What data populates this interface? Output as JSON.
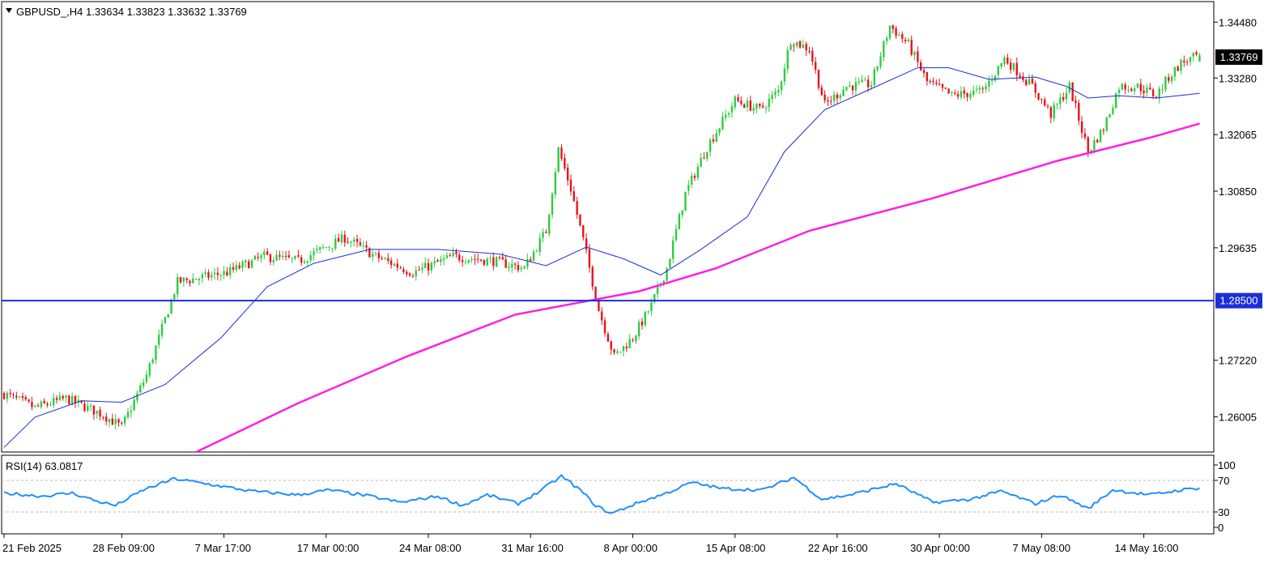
{
  "header": {
    "symbol": "GBPUSD_,H4",
    "open": "1.33634",
    "high": "1.33823",
    "low": "1.33632",
    "close": "1.33769",
    "text": "GBPUSD_,H4  1.33634 1.33823 1.33632 1.33769"
  },
  "rsi_panel": {
    "label": "RSI(14) 63.0817",
    "levels": [
      "100",
      "70",
      "30",
      "0"
    ]
  },
  "price_badges": {
    "current": "1.33769",
    "hline": "1.28500"
  },
  "colors": {
    "bull": "#2ecc40",
    "bear": "#e8131b",
    "ma_fast": "#1a2fd8",
    "ma_slow": "#ff1fe0",
    "hline": "#1a2fd8",
    "rsi": "#1e90ff",
    "current_badge_bg": "#000000",
    "hline_badge_bg": "#1a2fd8"
  },
  "chart_data": {
    "type": "candlestick",
    "symbol": "GBPUSD_",
    "timeframe": "H4",
    "y_ticks": [
      "1.34480",
      "1.33280",
      "1.32065",
      "1.30850",
      "1.29635",
      "1.28500",
      "1.27220",
      "1.26005"
    ],
    "ylim": [
      1.2525,
      1.3492
    ],
    "x_tick_labels": [
      "21 Feb 2025",
      "28 Feb 09:00",
      "7 Mar 17:00",
      "17 Mar 00:00",
      "24 Mar 08:00",
      "31 Mar 16:00",
      "8 Apr 00:00",
      "15 Apr 08:00",
      "22 Apr 16:00",
      "30 Apr 00:00",
      "7 May 08:00",
      "14 May 16:00"
    ],
    "close_path": [
      {
        "bar": 0,
        "close": 1.265
      },
      {
        "bar": 10,
        "close": 1.262
      },
      {
        "bar": 20,
        "close": 1.264
      },
      {
        "bar": 32,
        "close": 1.2605
      },
      {
        "bar": 38,
        "close": 1.2578
      },
      {
        "bar": 46,
        "close": 1.269
      },
      {
        "bar": 56,
        "close": 1.289
      },
      {
        "bar": 72,
        "close": 1.291
      },
      {
        "bar": 84,
        "close": 1.2945
      },
      {
        "bar": 95,
        "close": 1.2935
      },
      {
        "bar": 110,
        "close": 1.2985
      },
      {
        "bar": 120,
        "close": 1.2945
      },
      {
        "bar": 132,
        "close": 1.291
      },
      {
        "bar": 145,
        "close": 1.2945
      },
      {
        "bar": 158,
        "close": 1.2935
      },
      {
        "bar": 168,
        "close": 1.292
      },
      {
        "bar": 175,
        "close": 1.3
      },
      {
        "bar": 179,
        "close": 1.3175
      },
      {
        "bar": 183,
        "close": 1.309
      },
      {
        "bar": 187,
        "close": 1.298
      },
      {
        "bar": 192,
        "close": 1.283
      },
      {
        "bar": 197,
        "close": 1.273
      },
      {
        "bar": 203,
        "close": 1.277
      },
      {
        "bar": 209,
        "close": 1.284
      },
      {
        "bar": 214,
        "close": 1.292
      },
      {
        "bar": 220,
        "close": 1.308
      },
      {
        "bar": 227,
        "close": 1.318
      },
      {
        "bar": 236,
        "close": 1.328
      },
      {
        "bar": 244,
        "close": 1.326
      },
      {
        "bar": 250,
        "close": 1.33
      },
      {
        "bar": 254,
        "close": 1.341
      },
      {
        "bar": 260,
        "close": 1.339
      },
      {
        "bar": 265,
        "close": 1.327
      },
      {
        "bar": 272,
        "close": 1.331
      },
      {
        "bar": 280,
        "close": 1.3315
      },
      {
        "bar": 286,
        "close": 1.344
      },
      {
        "bar": 292,
        "close": 1.34
      },
      {
        "bar": 298,
        "close": 1.332
      },
      {
        "bar": 306,
        "close": 1.329
      },
      {
        "bar": 316,
        "close": 1.33
      },
      {
        "bar": 323,
        "close": 1.337
      },
      {
        "bar": 332,
        "close": 1.331
      },
      {
        "bar": 338,
        "close": 1.325
      },
      {
        "bar": 344,
        "close": 1.331
      },
      {
        "bar": 350,
        "close": 1.317
      },
      {
        "bar": 355,
        "close": 1.322
      },
      {
        "bar": 360,
        "close": 1.331
      },
      {
        "bar": 366,
        "close": 1.331
      },
      {
        "bar": 372,
        "close": 1.329
      },
      {
        "bar": 376,
        "close": 1.333
      },
      {
        "bar": 380,
        "close": 1.336
      },
      {
        "bar": 386,
        "close": 1.3377
      }
    ],
    "ma_fast": [
      {
        "bar": 0,
        "v": 1.2535
      },
      {
        "bar": 10,
        "v": 1.26
      },
      {
        "bar": 25,
        "v": 1.2635
      },
      {
        "bar": 38,
        "v": 1.2632
      },
      {
        "bar": 52,
        "v": 1.267
      },
      {
        "bar": 70,
        "v": 1.277
      },
      {
        "bar": 85,
        "v": 1.288
      },
      {
        "bar": 100,
        "v": 1.293
      },
      {
        "bar": 118,
        "v": 1.296
      },
      {
        "bar": 140,
        "v": 1.296
      },
      {
        "bar": 160,
        "v": 1.295
      },
      {
        "bar": 175,
        "v": 1.2925
      },
      {
        "bar": 188,
        "v": 1.2965
      },
      {
        "bar": 200,
        "v": 1.294
      },
      {
        "bar": 212,
        "v": 1.2905
      },
      {
        "bar": 225,
        "v": 1.296
      },
      {
        "bar": 240,
        "v": 1.303
      },
      {
        "bar": 252,
        "v": 1.317
      },
      {
        "bar": 265,
        "v": 1.326
      },
      {
        "bar": 280,
        "v": 1.3305
      },
      {
        "bar": 295,
        "v": 1.335
      },
      {
        "bar": 305,
        "v": 1.335
      },
      {
        "bar": 318,
        "v": 1.3325
      },
      {
        "bar": 333,
        "v": 1.333
      },
      {
        "bar": 343,
        "v": 1.331
      },
      {
        "bar": 350,
        "v": 1.3285
      },
      {
        "bar": 360,
        "v": 1.329
      },
      {
        "bar": 372,
        "v": 1.3285
      },
      {
        "bar": 386,
        "v": 1.3295
      }
    ],
    "ma_slow": [
      {
        "bar": 62,
        "v": 1.2525
      },
      {
        "bar": 95,
        "v": 1.263
      },
      {
        "bar": 130,
        "v": 1.273
      },
      {
        "bar": 165,
        "v": 1.282
      },
      {
        "bar": 205,
        "v": 1.287
      },
      {
        "bar": 230,
        "v": 1.292
      },
      {
        "bar": 260,
        "v": 1.3
      },
      {
        "bar": 300,
        "v": 1.307
      },
      {
        "bar": 340,
        "v": 1.315
      },
      {
        "bar": 370,
        "v": 1.32
      },
      {
        "bar": 386,
        "v": 1.323
      }
    ],
    "horizontal_line": 1.285,
    "rsi": {
      "period": 14,
      "value": 63.0817,
      "range": [
        0,
        100
      ],
      "levels": [
        70,
        30
      ],
      "path": [
        {
          "bar": 0,
          "v": 55
        },
        {
          "bar": 12,
          "v": 50
        },
        {
          "bar": 22,
          "v": 55
        },
        {
          "bar": 30,
          "v": 42
        },
        {
          "bar": 36,
          "v": 35
        },
        {
          "bar": 45,
          "v": 60
        },
        {
          "bar": 55,
          "v": 78
        },
        {
          "bar": 65,
          "v": 70
        },
        {
          "bar": 80,
          "v": 58
        },
        {
          "bar": 95,
          "v": 52
        },
        {
          "bar": 105,
          "v": 60
        },
        {
          "bar": 118,
          "v": 50
        },
        {
          "bar": 128,
          "v": 40
        },
        {
          "bar": 140,
          "v": 50
        },
        {
          "bar": 148,
          "v": 35
        },
        {
          "bar": 156,
          "v": 52
        },
        {
          "bar": 166,
          "v": 38
        },
        {
          "bar": 172,
          "v": 55
        },
        {
          "bar": 180,
          "v": 82
        },
        {
          "bar": 186,
          "v": 60
        },
        {
          "bar": 191,
          "v": 35
        },
        {
          "bar": 196,
          "v": 22
        },
        {
          "bar": 205,
          "v": 40
        },
        {
          "bar": 214,
          "v": 55
        },
        {
          "bar": 222,
          "v": 72
        },
        {
          "bar": 232,
          "v": 62
        },
        {
          "bar": 245,
          "v": 60
        },
        {
          "bar": 255,
          "v": 80
        },
        {
          "bar": 264,
          "v": 45
        },
        {
          "bar": 273,
          "v": 52
        },
        {
          "bar": 288,
          "v": 70
        },
        {
          "bar": 300,
          "v": 40
        },
        {
          "bar": 312,
          "v": 45
        },
        {
          "bar": 322,
          "v": 58
        },
        {
          "bar": 333,
          "v": 38
        },
        {
          "bar": 341,
          "v": 52
        },
        {
          "bar": 350,
          "v": 30
        },
        {
          "bar": 358,
          "v": 60
        },
        {
          "bar": 370,
          "v": 52
        },
        {
          "bar": 380,
          "v": 60
        },
        {
          "bar": 386,
          "v": 63
        }
      ]
    }
  }
}
